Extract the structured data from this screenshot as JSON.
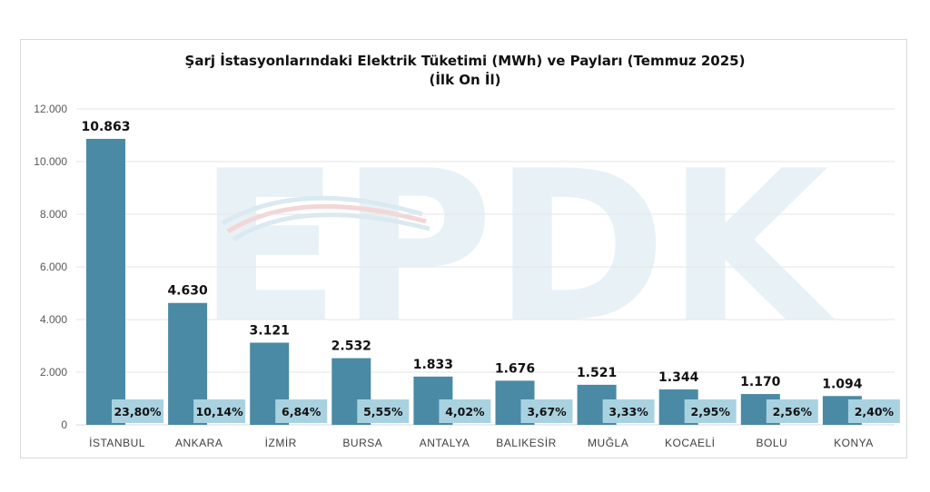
{
  "chart_data": {
    "type": "bar",
    "title": "Şarj İstasyonlarındaki Elektrik Tüketimi (MWh) ve Payları (Temmuz 2025)",
    "subtitle": "(İlk On İl)",
    "categories": [
      "İSTANBUL",
      "ANKARA",
      "İZMİR",
      "BURSA",
      "ANTALYA",
      "BALIKESİR",
      "MUĞLA",
      "KOCAELİ",
      "BOLU",
      "KONYA"
    ],
    "values": [
      10863,
      4630,
      3121,
      2532,
      1833,
      1676,
      1521,
      1344,
      1170,
      1094
    ],
    "value_labels": [
      "10.863",
      "4.630",
      "3.121",
      "2.532",
      "1.833",
      "1.676",
      "1.521",
      "1.344",
      "1.170",
      "1.094"
    ],
    "shares": [
      "23,80%",
      "10,14%",
      "6,84%",
      "5,55%",
      "4,02%",
      "3,67%",
      "3,33%",
      "2,95%",
      "2,56%",
      "2,40%"
    ],
    "y_ticks": [
      "0",
      "2.000",
      "4.000",
      "6.000",
      "8.000",
      "10.000",
      "12.000"
    ],
    "ylim": [
      0,
      12000
    ],
    "grid": true,
    "watermark_text": "EPDK",
    "colors": {
      "bar": "#4a8aa5",
      "share_label_bg": "#a9d2e1",
      "grid": "#e6e6e6",
      "watermark": "#e8f1f6"
    }
  }
}
